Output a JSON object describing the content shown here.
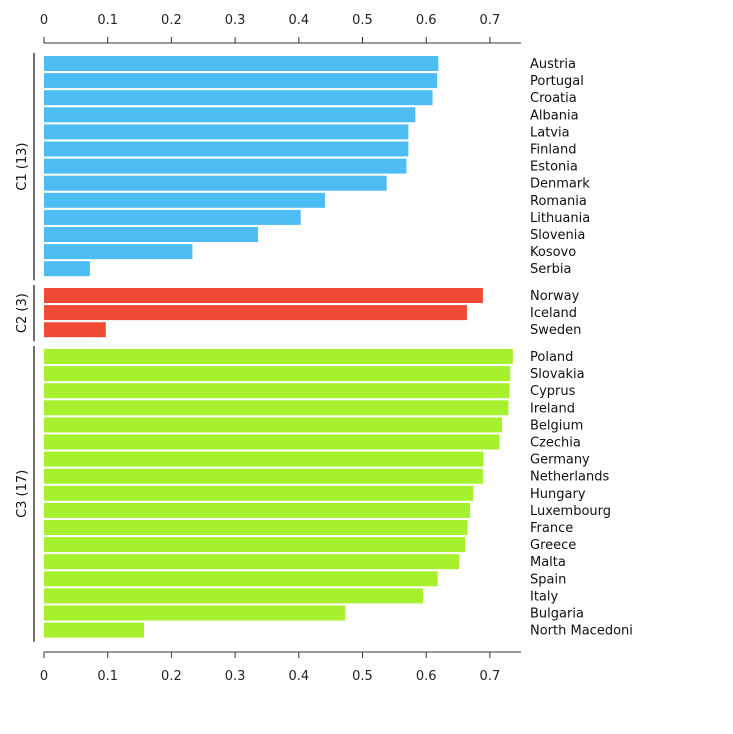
{
  "chart_data": {
    "type": "bar",
    "orientation": "horizontal",
    "xlim": [
      0,
      0.75
    ],
    "ticks": [
      "0",
      "0.1",
      "0.2",
      "0.3",
      "0.4",
      "0.5",
      "0.6",
      "0.7"
    ],
    "tick_values": [
      0,
      0.1,
      0.2,
      0.3,
      0.4,
      0.5,
      0.6,
      0.7
    ],
    "grid": false,
    "groups": [
      {
        "label": "C1 (13)",
        "color": "#4dbcf2",
        "items": [
          {
            "name": "Austria",
            "value": 0.619
          },
          {
            "name": "Portugal",
            "value": 0.617
          },
          {
            "name": "Croatia",
            "value": 0.61
          },
          {
            "name": "Albania",
            "value": 0.583
          },
          {
            "name": "Latvia",
            "value": 0.572
          },
          {
            "name": "Finland",
            "value": 0.572
          },
          {
            "name": "Estonia",
            "value": 0.569
          },
          {
            "name": "Denmark",
            "value": 0.538
          },
          {
            "name": "Romania",
            "value": 0.441
          },
          {
            "name": "Lithuania",
            "value": 0.403
          },
          {
            "name": "Slovenia",
            "value": 0.336
          },
          {
            "name": "Kosovo",
            "value": 0.233
          },
          {
            "name": "Serbia",
            "value": 0.072
          }
        ]
      },
      {
        "label": "C2 (3)",
        "color": "#f04a36",
        "items": [
          {
            "name": "Norway",
            "value": 0.689
          },
          {
            "name": "Iceland",
            "value": 0.664
          },
          {
            "name": "Sweden",
            "value": 0.097
          }
        ]
      },
      {
        "label": "C3 (17)",
        "color": "#a6f02e",
        "items": [
          {
            "name": "Poland",
            "value": 0.736
          },
          {
            "name": "Slovakia",
            "value": 0.732
          },
          {
            "name": "Cyprus",
            "value": 0.731
          },
          {
            "name": "Ireland",
            "value": 0.729
          },
          {
            "name": "Belgium",
            "value": 0.719
          },
          {
            "name": "Czechia",
            "value": 0.715
          },
          {
            "name": "Germany",
            "value": 0.69
          },
          {
            "name": "Netherlands",
            "value": 0.689
          },
          {
            "name": "Hungary",
            "value": 0.674
          },
          {
            "name": "Luxembourg",
            "value": 0.669
          },
          {
            "name": "France",
            "value": 0.665
          },
          {
            "name": "Greece",
            "value": 0.661
          },
          {
            "name": "Malta",
            "value": 0.652
          },
          {
            "name": "Spain",
            "value": 0.618
          },
          {
            "name": "Italy",
            "value": 0.595
          },
          {
            "name": "Bulgaria",
            "value": 0.473
          },
          {
            "name": "North Macedoni",
            "value": 0.157
          }
        ]
      }
    ]
  }
}
